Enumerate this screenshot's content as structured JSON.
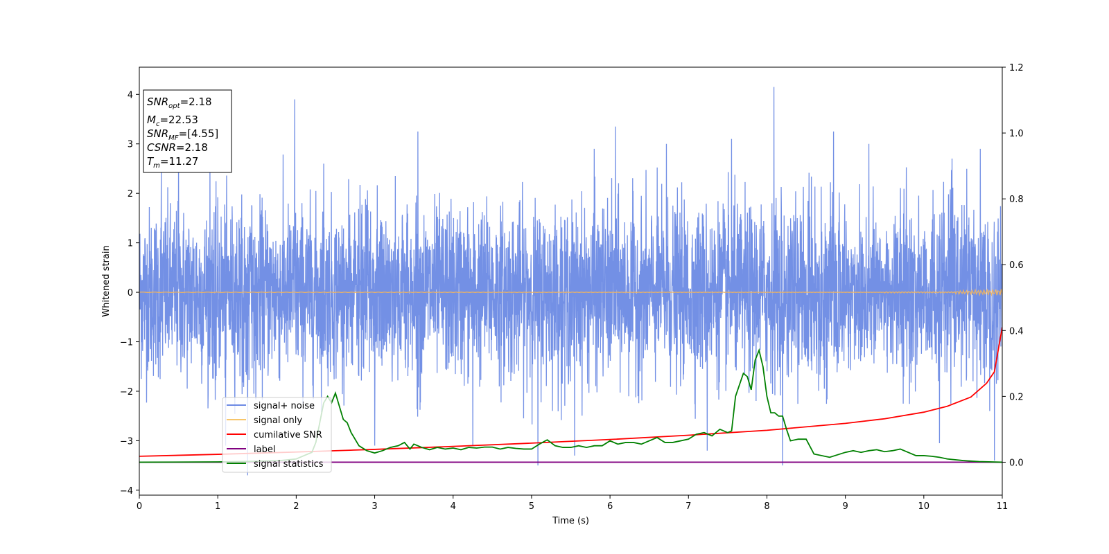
{
  "chart_data": {
    "type": "line",
    "xlabel": "Time (s)",
    "ylabel": "Whitened strain",
    "xlim": [
      0,
      11
    ],
    "ylim": [
      -4.1,
      4.55
    ],
    "y2lim": [
      -0.1,
      1.2
    ],
    "xticks": [
      0,
      1,
      2,
      3,
      4,
      5,
      6,
      7,
      8,
      9,
      10,
      11
    ],
    "yticks": [
      -4,
      -3,
      -2,
      -1,
      0,
      1,
      2,
      3,
      4
    ],
    "y2ticks": [
      "0.0",
      "0.2",
      "0.4",
      "0.6",
      "0.8",
      "1.0",
      "1.2"
    ],
    "grid": false,
    "legend_position": "lower-left",
    "colors": {
      "signal_noise": "#6c8ae4",
      "signal_only": "#f0b460",
      "cumulative_snr": "#ff0000",
      "label": "#800080",
      "signal_statistics": "#008000"
    },
    "legend": [
      {
        "label": "signal+ noise",
        "color": "#6c8ae4"
      },
      {
        "label": "signal only",
        "color": "#f7c66b"
      },
      {
        "label": "cumilative SNR",
        "color": "#ff0000"
      },
      {
        "label": "label",
        "color": "#800080"
      },
      {
        "label": "signal statistics",
        "color": "#008000"
      }
    ],
    "info_box": {
      "snr_opt": {
        "base": "SNR",
        "sub": "opt",
        "value": "=2.18"
      },
      "mc": {
        "base": "M",
        "sub": "c",
        "value": "=22.53"
      },
      "snr_mf": {
        "base": "SNR",
        "sub": "MF",
        "value": "=[4.55]"
      },
      "csnr": {
        "base": "CSNR",
        "value": "=2.18"
      },
      "tm": {
        "base": "T",
        "sub": "m",
        "value": "=11.27"
      }
    },
    "noise_envelope": {
      "typical_upper": 2.2,
      "typical_lower": -2.0,
      "spikes": [
        {
          "x": 0.28,
          "y": 2.5
        },
        {
          "x": 0.5,
          "y": 2.7
        },
        {
          "x": 0.9,
          "y": 2.9
        },
        {
          "x": 1.1,
          "y": -3.1
        },
        {
          "x": 1.38,
          "y": -3.7
        },
        {
          "x": 1.98,
          "y": 3.9
        },
        {
          "x": 2.35,
          "y": 2.6
        },
        {
          "x": 3.0,
          "y": -3.1
        },
        {
          "x": 3.55,
          "y": 3.25
        },
        {
          "x": 4.25,
          "y": -3.1
        },
        {
          "x": 5.08,
          "y": -3.5
        },
        {
          "x": 5.55,
          "y": -3.3
        },
        {
          "x": 5.8,
          "y": 2.9
        },
        {
          "x": 6.07,
          "y": 3.35
        },
        {
          "x": 6.72,
          "y": 3.0
        },
        {
          "x": 7.24,
          "y": -3.2
        },
        {
          "x": 7.55,
          "y": 3.1
        },
        {
          "x": 8.09,
          "y": 4.15
        },
        {
          "x": 8.2,
          "y": -3.5
        },
        {
          "x": 8.85,
          "y": 3.25
        },
        {
          "x": 9.3,
          "y": 3.0
        },
        {
          "x": 10.2,
          "y": -3.05
        },
        {
          "x": 10.72,
          "y": 2.9
        },
        {
          "x": 10.9,
          "y": -3.4
        }
      ]
    },
    "series": [
      {
        "name": "cumilative SNR",
        "axis": "right",
        "x": [
          0,
          1,
          2,
          3,
          4,
          5,
          6,
          7,
          8,
          9,
          9.5,
          10,
          10.3,
          10.6,
          10.8,
          10.9,
          11
        ],
        "y": [
          0.018,
          0.024,
          0.031,
          0.039,
          0.048,
          0.058,
          0.069,
          0.082,
          0.097,
          0.118,
          0.132,
          0.152,
          0.17,
          0.198,
          0.24,
          0.275,
          0.41
        ]
      },
      {
        "name": "label",
        "axis": "right",
        "x": [
          0,
          11
        ],
        "y": [
          0,
          0
        ]
      },
      {
        "name": "signal statistics",
        "axis": "right",
        "x": [
          0,
          1.0,
          1.5,
          1.8,
          2.0,
          2.1,
          2.2,
          2.25,
          2.3,
          2.35,
          2.4,
          2.45,
          2.5,
          2.55,
          2.6,
          2.65,
          2.7,
          2.8,
          2.9,
          3.0,
          3.1,
          3.2,
          3.3,
          3.38,
          3.45,
          3.5,
          3.6,
          3.7,
          3.8,
          3.9,
          4.0,
          4.1,
          4.2,
          4.3,
          4.4,
          4.5,
          4.6,
          4.7,
          4.8,
          4.9,
          5.0,
          5.1,
          5.2,
          5.3,
          5.4,
          5.5,
          5.6,
          5.7,
          5.8,
          5.9,
          6.0,
          6.1,
          6.2,
          6.3,
          6.4,
          6.5,
          6.6,
          6.7,
          6.8,
          6.9,
          7.0,
          7.1,
          7.2,
          7.3,
          7.4,
          7.5,
          7.55,
          7.6,
          7.7,
          7.75,
          7.8,
          7.85,
          7.9,
          7.95,
          8.0,
          8.05,
          8.1,
          8.15,
          8.2,
          8.25,
          8.3,
          8.4,
          8.5,
          8.6,
          8.8,
          9.0,
          9.1,
          9.2,
          9.3,
          9.4,
          9.5,
          9.6,
          9.7,
          9.8,
          9.9,
          10.0,
          10.1,
          10.2,
          10.3,
          10.5,
          10.7,
          11.0
        ],
        "y": [
          0.0,
          0.001,
          0.003,
          0.005,
          0.01,
          0.02,
          0.03,
          0.06,
          0.12,
          0.18,
          0.2,
          0.18,
          0.21,
          0.17,
          0.13,
          0.12,
          0.09,
          0.05,
          0.035,
          0.028,
          0.035,
          0.045,
          0.05,
          0.06,
          0.04,
          0.055,
          0.045,
          0.038,
          0.045,
          0.04,
          0.043,
          0.038,
          0.045,
          0.043,
          0.046,
          0.046,
          0.04,
          0.045,
          0.042,
          0.04,
          0.04,
          0.055,
          0.068,
          0.05,
          0.045,
          0.045,
          0.05,
          0.045,
          0.05,
          0.05,
          0.065,
          0.055,
          0.06,
          0.06,
          0.055,
          0.065,
          0.075,
          0.06,
          0.06,
          0.065,
          0.07,
          0.085,
          0.09,
          0.08,
          0.1,
          0.09,
          0.095,
          0.2,
          0.27,
          0.26,
          0.22,
          0.31,
          0.34,
          0.29,
          0.2,
          0.15,
          0.15,
          0.14,
          0.14,
          0.1,
          0.065,
          0.07,
          0.07,
          0.025,
          0.015,
          0.03,
          0.035,
          0.03,
          0.035,
          0.038,
          0.032,
          0.035,
          0.04,
          0.03,
          0.02,
          0.02,
          0.018,
          0.015,
          0.01,
          0.005,
          0.002,
          0.0
        ]
      }
    ]
  }
}
